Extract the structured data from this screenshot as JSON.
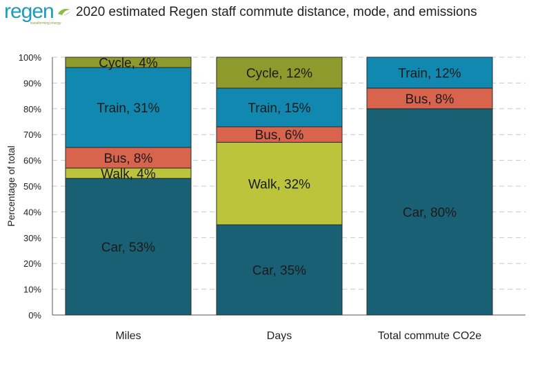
{
  "logo": {
    "wordmark": "regen",
    "tagline": "transforming energy"
  },
  "chart_data": {
    "type": "bar",
    "stacked": true,
    "title": "2020 estimated Regen staff commute distance, mode, and emissions",
    "ylabel": "Percentage of total",
    "xlabel": "",
    "ylim": [
      0,
      100
    ],
    "yticks": [
      "0%",
      "10%",
      "20%",
      "30%",
      "40%",
      "50%",
      "60%",
      "70%",
      "80%",
      "90%",
      "100%"
    ],
    "grid": true,
    "legend": "none",
    "categories": [
      "Miles",
      "Days",
      "Total commute CO2e"
    ],
    "series": [
      {
        "name": "Car",
        "color": "#1a6075",
        "values": [
          53,
          35,
          80
        ],
        "labels": [
          "Car, 53%",
          "Car, 35%",
          "Car, 80%"
        ]
      },
      {
        "name": "Walk",
        "color": "#bcc43c",
        "values": [
          4,
          32,
          0
        ],
        "labels": [
          "Walk, 4%",
          "Walk, 32%",
          ""
        ]
      },
      {
        "name": "Bus",
        "color": "#d9644e",
        "values": [
          8,
          6,
          8
        ],
        "labels": [
          "Bus, 8%",
          "Bus, 6%",
          "Bus, 8%"
        ]
      },
      {
        "name": "Train",
        "color": "#1088b0",
        "values": [
          31,
          15,
          12
        ],
        "labels": [
          "Train, 31%",
          "Train, 15%",
          "Train, 12%"
        ]
      },
      {
        "name": "Cycle",
        "color": "#8e9a2c",
        "values": [
          4,
          12,
          0
        ],
        "labels": [
          "Cycle, 4%",
          "Cycle, 12%",
          ""
        ]
      }
    ]
  }
}
